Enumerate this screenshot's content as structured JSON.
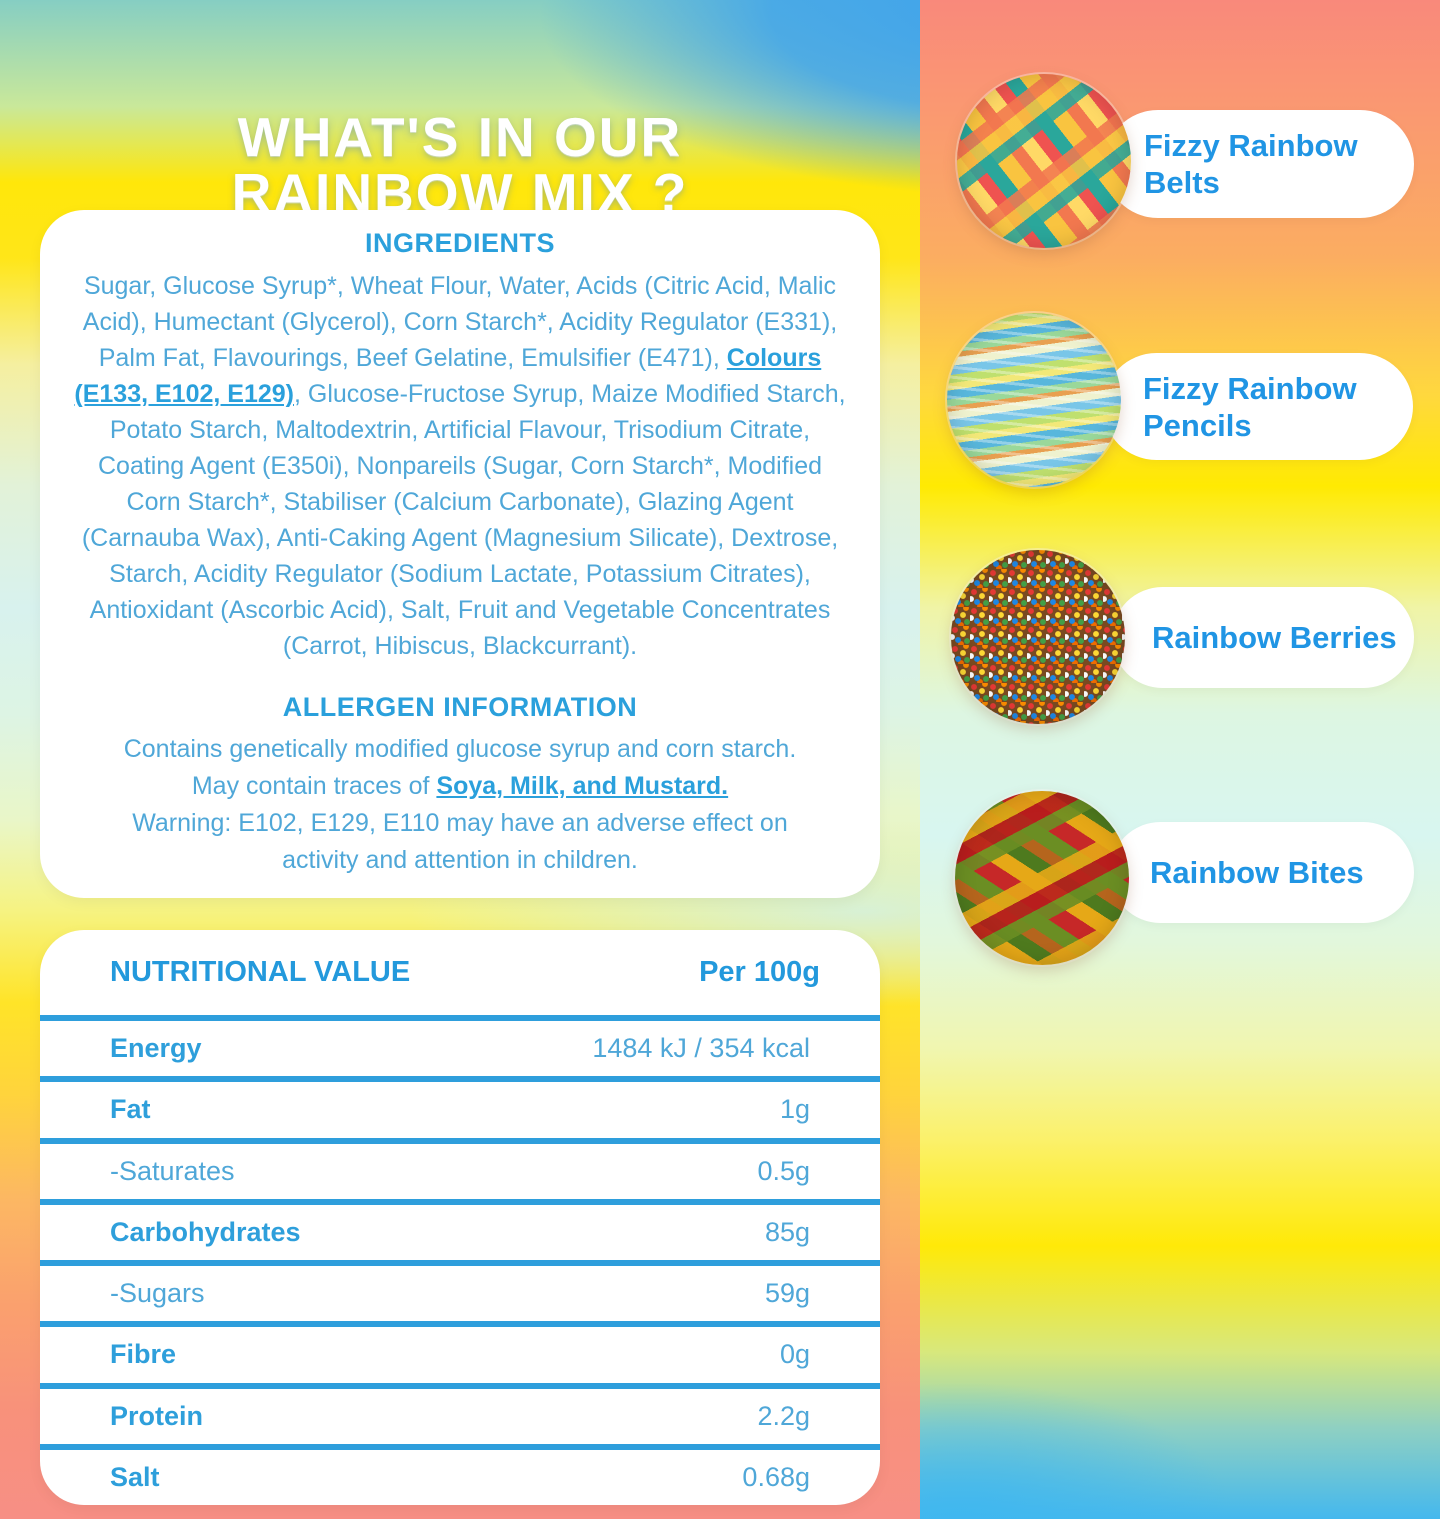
{
  "title": {
    "line1": "WHAT'S IN OUR",
    "line2": "RAINBOW MIX ?"
  },
  "ingredients_card": {
    "heading": "INGREDIENTS",
    "text_before": "Sugar, Glucose Syrup*, Wheat Flour, Water, Acids (Citric Acid, Malic Acid), Humectant (Glycerol), Corn Starch*, Acidity Regulator (E331), Palm Fat, Flavourings, Beef Gelatine, Emulsifier (E471), ",
    "colours_bold": "Colours (E133, E102, E129)",
    "text_after": ", Glucose-Fructose Syrup, Maize Modified Starch, Potato Starch, Maltodextrin, Artificial Flavour, Trisodium Citrate, Coating Agent (E350i), Nonpareils (Sugar, Corn Starch*, Modified Corn Starch*, Stabiliser (Calcium Carbonate), Glazing Agent (Carnauba Wax), Anti-Caking Agent (Magnesium Silicate), Dextrose, Starch, Acidity Regulator (Sodium Lactate, Potassium Citrates), Antioxidant (Ascorbic Acid), Salt, Fruit and Vegetable Concentrates (Carrot, Hibiscus, Blackcurrant)."
  },
  "allergen": {
    "heading": "ALLERGEN INFORMATION",
    "line1": "Contains genetically modified glucose syrup and corn starch.",
    "line2_prefix": "May contain traces of ",
    "line2_bold": "Soya, Milk, and Mustard.",
    "line3": "Warning: E102, E129, E110 may have an adverse effect on",
    "line4": "activity and attention in children."
  },
  "nutrition": {
    "heading": "NUTRITIONAL VALUE",
    "column": "Per 100g",
    "rows": [
      {
        "label": "Energy",
        "value": "1484 kJ / 354 kcal"
      },
      {
        "label": "Fat",
        "value": "1g"
      },
      {
        "label": "-Saturates",
        "value": "0.5g"
      },
      {
        "label": "Carbohydrates",
        "value": "85g"
      },
      {
        "label": "-Sugars",
        "value": "59g"
      },
      {
        "label": "Fibre",
        "value": "0g"
      },
      {
        "label": "Protein",
        "value": "2.2g"
      },
      {
        "label": "Salt",
        "value": "0.68g"
      }
    ]
  },
  "products": [
    {
      "line1": "Fizzy Rainbow",
      "line2": "Belts",
      "image": "fizzy-rainbow-belts-image"
    },
    {
      "line1": "Fizzy Rainbow",
      "line2": "Pencils",
      "image": "fizzy-rainbow-pencils-image"
    },
    {
      "line1": "Rainbow Berries",
      "line2": "",
      "image": "rainbow-berries-image"
    },
    {
      "line1": "Rainbow Bites",
      "line2": "",
      "image": "rainbow-bites-image"
    }
  ],
  "colors": {
    "heading_blue": "#2AA0DC",
    "body_blue": "#4FA7D8",
    "pill_text_blue": "#2095E4",
    "table_line_blue": "#2E9EDC",
    "card_white": "#FFFFFF",
    "bg_salmon": "#F9897B",
    "bg_yellow": "#FFE70A",
    "bg_cyan": "#D8F2EE",
    "bg_blue": "#3FA3EC"
  }
}
